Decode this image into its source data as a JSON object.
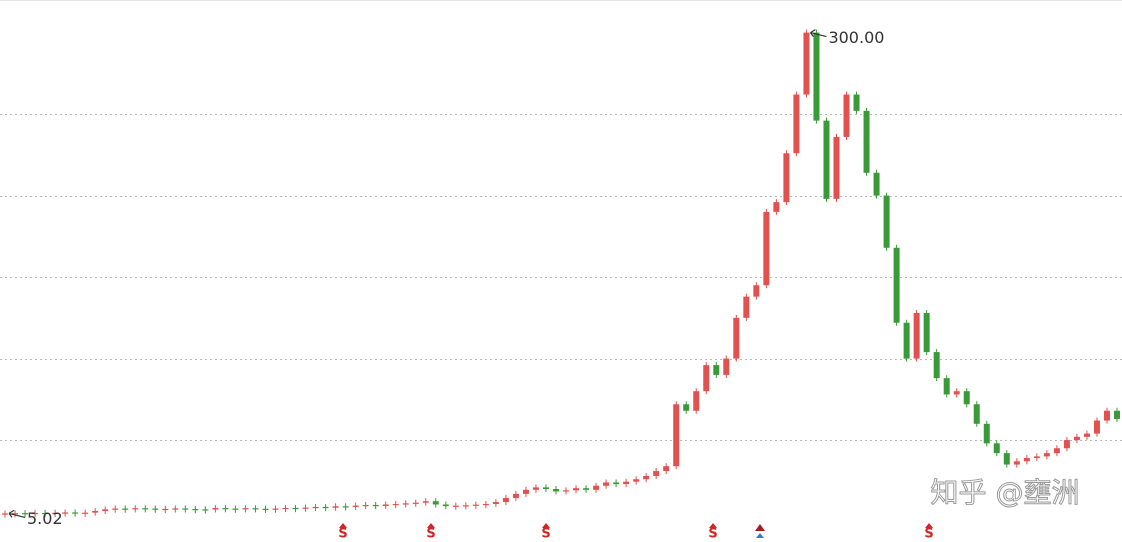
{
  "chart_data": {
    "type": "candlestick",
    "values": [
      5.02,
      5.2,
      5.0,
      5.3,
      5.1,
      5.4,
      5.6,
      5.3,
      5.5,
      6.5,
      7.5,
      8,
      7.8,
      8.2,
      8,
      7.6,
      7.8,
      8.1,
      7.7,
      7.5,
      7.4,
      8.3,
      8,
      7.6,
      8.2,
      7.9,
      7.5,
      8,
      8.4,
      8,
      8.6,
      9,
      8.5,
      9.4,
      9,
      9.8,
      10.2,
      9.6,
      10.5,
      10.8,
      11.2,
      11.6,
      12.5,
      10.5,
      9.5,
      9.8,
      10,
      10.4,
      10.8,
      12,
      14.5,
      17,
      19.5,
      21,
      20,
      18.5,
      19.2,
      20.5,
      19.5,
      22,
      24,
      23,
      24.5,
      26,
      28,
      31,
      34,
      72,
      68,
      80,
      96,
      90,
      100,
      125,
      138,
      145,
      190,
      196,
      226,
      262,
      300,
      246,
      198,
      236,
      262,
      252,
      214,
      200,
      168,
      122,
      100,
      128,
      104,
      88,
      78,
      80,
      72,
      60,
      48,
      42,
      35,
      37,
      39,
      40,
      42,
      45,
      50,
      52,
      54,
      62,
      68,
      63
    ],
    "value_labels": [
      "5.02",
      null,
      null,
      null,
      null,
      null,
      null,
      null,
      null,
      null,
      null,
      null,
      null,
      null,
      null,
      null,
      null,
      null,
      null,
      null,
      null,
      null,
      null,
      null,
      null,
      null,
      null,
      null,
      null,
      null,
      null,
      null,
      null,
      null,
      null,
      null,
      null,
      null,
      null,
      null,
      null,
      null,
      null,
      null,
      null,
      null,
      null,
      null,
      null,
      null,
      null,
      null,
      null,
      null,
      null,
      null,
      null,
      null,
      null,
      null,
      null,
      null,
      null,
      null,
      null,
      null,
      null,
      null,
      null,
      null,
      null,
      null,
      null,
      null,
      null,
      null,
      null,
      null,
      null,
      null,
      "300.00",
      null,
      null,
      null,
      null,
      null,
      null,
      null,
      null,
      null,
      null,
      null,
      null,
      null,
      null,
      null,
      null,
      null,
      null,
      null,
      null,
      null,
      null,
      null,
      null,
      null,
      null,
      null,
      null,
      null,
      null,
      null
    ],
    "up_color": "#e0514f",
    "down_color": "#3a9a3a",
    "ylim": [
      0,
      320
    ],
    "yticks": [
      50,
      100,
      150,
      200,
      250
    ],
    "grid": true,
    "signals": [
      "S",
      "S",
      "S",
      "S",
      "S"
    ],
    "watermark": "知乎 @壅洲"
  }
}
